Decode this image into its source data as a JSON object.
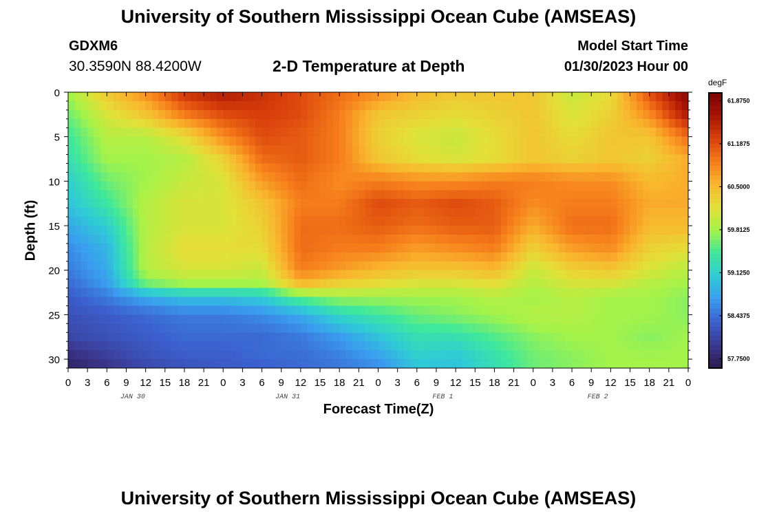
{
  "header": {
    "title": "University of Southern Mississippi Ocean Cube (AMSEAS)",
    "station": "GDXM6",
    "coordinates": "30.3590N  88.4200W",
    "plot_title": "2-D Temperature at Depth",
    "model_start_label": "Model Start Time",
    "model_start_value": "01/30/2023 Hour 00"
  },
  "footer": {
    "title": "University of Southern Mississippi Ocean Cube (AMSEAS)"
  },
  "chart_data": {
    "type": "heatmap",
    "xlabel": "Forecast Time(Z)",
    "ylabel": "Depth (ft)",
    "x_tick_labels": [
      "0",
      "3",
      "6",
      "9",
      "12",
      "15",
      "18",
      "21",
      "0",
      "3",
      "6",
      "9",
      "12",
      "15",
      "18",
      "21",
      "0",
      "3",
      "6",
      "9",
      "12",
      "15",
      "18",
      "21",
      "0",
      "3",
      "6",
      "9",
      "12",
      "15",
      "18",
      "21",
      "0"
    ],
    "date_labels": [
      "JAN 30",
      "JAN 31",
      "FEB 1",
      "FEB 2"
    ],
    "y_ticks": [
      0,
      5,
      10,
      15,
      20,
      25,
      30
    ],
    "xlim_hours": [
      0,
      96
    ],
    "ylim_ft": [
      0,
      31
    ],
    "y_inverted": true,
    "colorbar": {
      "title": "degF",
      "labels": [
        "61.8750",
        "61.1875",
        "60.5000",
        "59.8125",
        "59.1250",
        "58.4375",
        "57.7500"
      ],
      "vmin": 57.6,
      "vmax": 62.0,
      "colors": [
        "#2d1a4f",
        "#3b3890",
        "#3b5fcd",
        "#3a9cf0",
        "#2fcbd6",
        "#3fe89b",
        "#a4f349",
        "#e3e036",
        "#f9b62e",
        "#f67c1a",
        "#d9410b",
        "#a81404",
        "#7a0403"
      ]
    },
    "depths_ft": [
      0,
      2.5,
      5,
      7.5,
      10,
      12.5,
      15,
      17.5,
      20,
      21.5,
      23,
      25,
      27.5,
      30,
      31
    ],
    "hours": [
      0,
      6,
      12,
      18,
      24,
      30,
      36,
      42,
      48,
      54,
      60,
      66,
      72,
      78,
      84,
      90,
      96
    ],
    "values_degF": [
      [
        59.8,
        60.4,
        60.8,
        61.4,
        61.6,
        61.4,
        61.2,
        61.0,
        60.8,
        60.5,
        60.4,
        60.4,
        60.4,
        60.0,
        60.2,
        61.2,
        61.9
      ],
      [
        59.6,
        60.1,
        60.4,
        60.9,
        61.2,
        61.3,
        61.2,
        60.9,
        60.4,
        60.3,
        60.2,
        60.3,
        60.4,
        60.1,
        60.3,
        60.8,
        61.6
      ],
      [
        59.4,
        59.9,
        59.9,
        60.2,
        60.8,
        61.2,
        61.1,
        60.9,
        60.3,
        60.1,
        60.0,
        60.2,
        60.4,
        60.2,
        60.4,
        60.4,
        61.0
      ],
      [
        59.3,
        59.8,
        59.8,
        59.9,
        60.3,
        61.0,
        61.1,
        60.9,
        60.4,
        60.2,
        60.1,
        60.2,
        60.4,
        60.3,
        60.4,
        60.3,
        60.6
      ],
      [
        59.1,
        59.6,
        59.8,
        60.0,
        60.1,
        60.7,
        61.0,
        60.8,
        60.9,
        60.8,
        60.8,
        60.9,
        60.9,
        60.8,
        60.8,
        60.5,
        60.6
      ],
      [
        59.0,
        59.4,
        59.9,
        60.1,
        60.1,
        60.4,
        60.9,
        60.9,
        61.2,
        61.1,
        61.2,
        61.1,
        60.8,
        60.9,
        60.9,
        60.6,
        60.6
      ],
      [
        58.8,
        59.1,
        59.9,
        60.1,
        60.1,
        60.3,
        61.0,
        61.0,
        61.1,
        61.0,
        61.1,
        61.1,
        60.6,
        61.0,
        61.0,
        60.5,
        60.5
      ],
      [
        58.6,
        58.9,
        59.9,
        60.2,
        60.2,
        60.2,
        61.0,
        60.9,
        60.9,
        60.7,
        60.8,
        60.9,
        60.3,
        60.7,
        60.8,
        60.3,
        60.2
      ],
      [
        58.5,
        58.8,
        59.9,
        60.1,
        60.1,
        60.0,
        60.9,
        60.7,
        60.5,
        60.4,
        60.4,
        60.5,
        60.0,
        60.3,
        60.4,
        60.1,
        59.9
      ],
      [
        58.4,
        58.7,
        59.6,
        59.8,
        59.8,
        59.8,
        60.5,
        60.3,
        60.2,
        60.1,
        60.1,
        60.2,
        59.9,
        60.1,
        60.1,
        59.9,
        59.8
      ],
      [
        58.3,
        58.5,
        58.8,
        59.0,
        59.0,
        59.1,
        59.6,
        59.8,
        59.8,
        59.8,
        59.8,
        59.9,
        59.8,
        59.9,
        59.8,
        59.8,
        59.7
      ],
      [
        58.2,
        58.3,
        58.4,
        58.5,
        58.5,
        58.6,
        58.8,
        59.2,
        59.4,
        59.6,
        59.7,
        59.8,
        59.9,
        59.9,
        59.8,
        59.8,
        59.7
      ],
      [
        58.1,
        58.2,
        58.3,
        58.4,
        58.4,
        58.4,
        58.5,
        58.7,
        59.0,
        59.3,
        59.3,
        59.5,
        59.7,
        59.8,
        59.8,
        59.7,
        59.8
      ],
      [
        57.8,
        58.0,
        58.2,
        58.3,
        58.3,
        58.4,
        58.4,
        58.5,
        58.7,
        59.1,
        59.0,
        59.3,
        59.6,
        59.7,
        59.8,
        59.8,
        59.8
      ],
      [
        57.7,
        57.9,
        58.1,
        58.2,
        58.3,
        58.3,
        58.4,
        58.5,
        58.6,
        59.0,
        59.0,
        59.3,
        59.6,
        59.7,
        59.8,
        59.8,
        59.8
      ]
    ]
  }
}
